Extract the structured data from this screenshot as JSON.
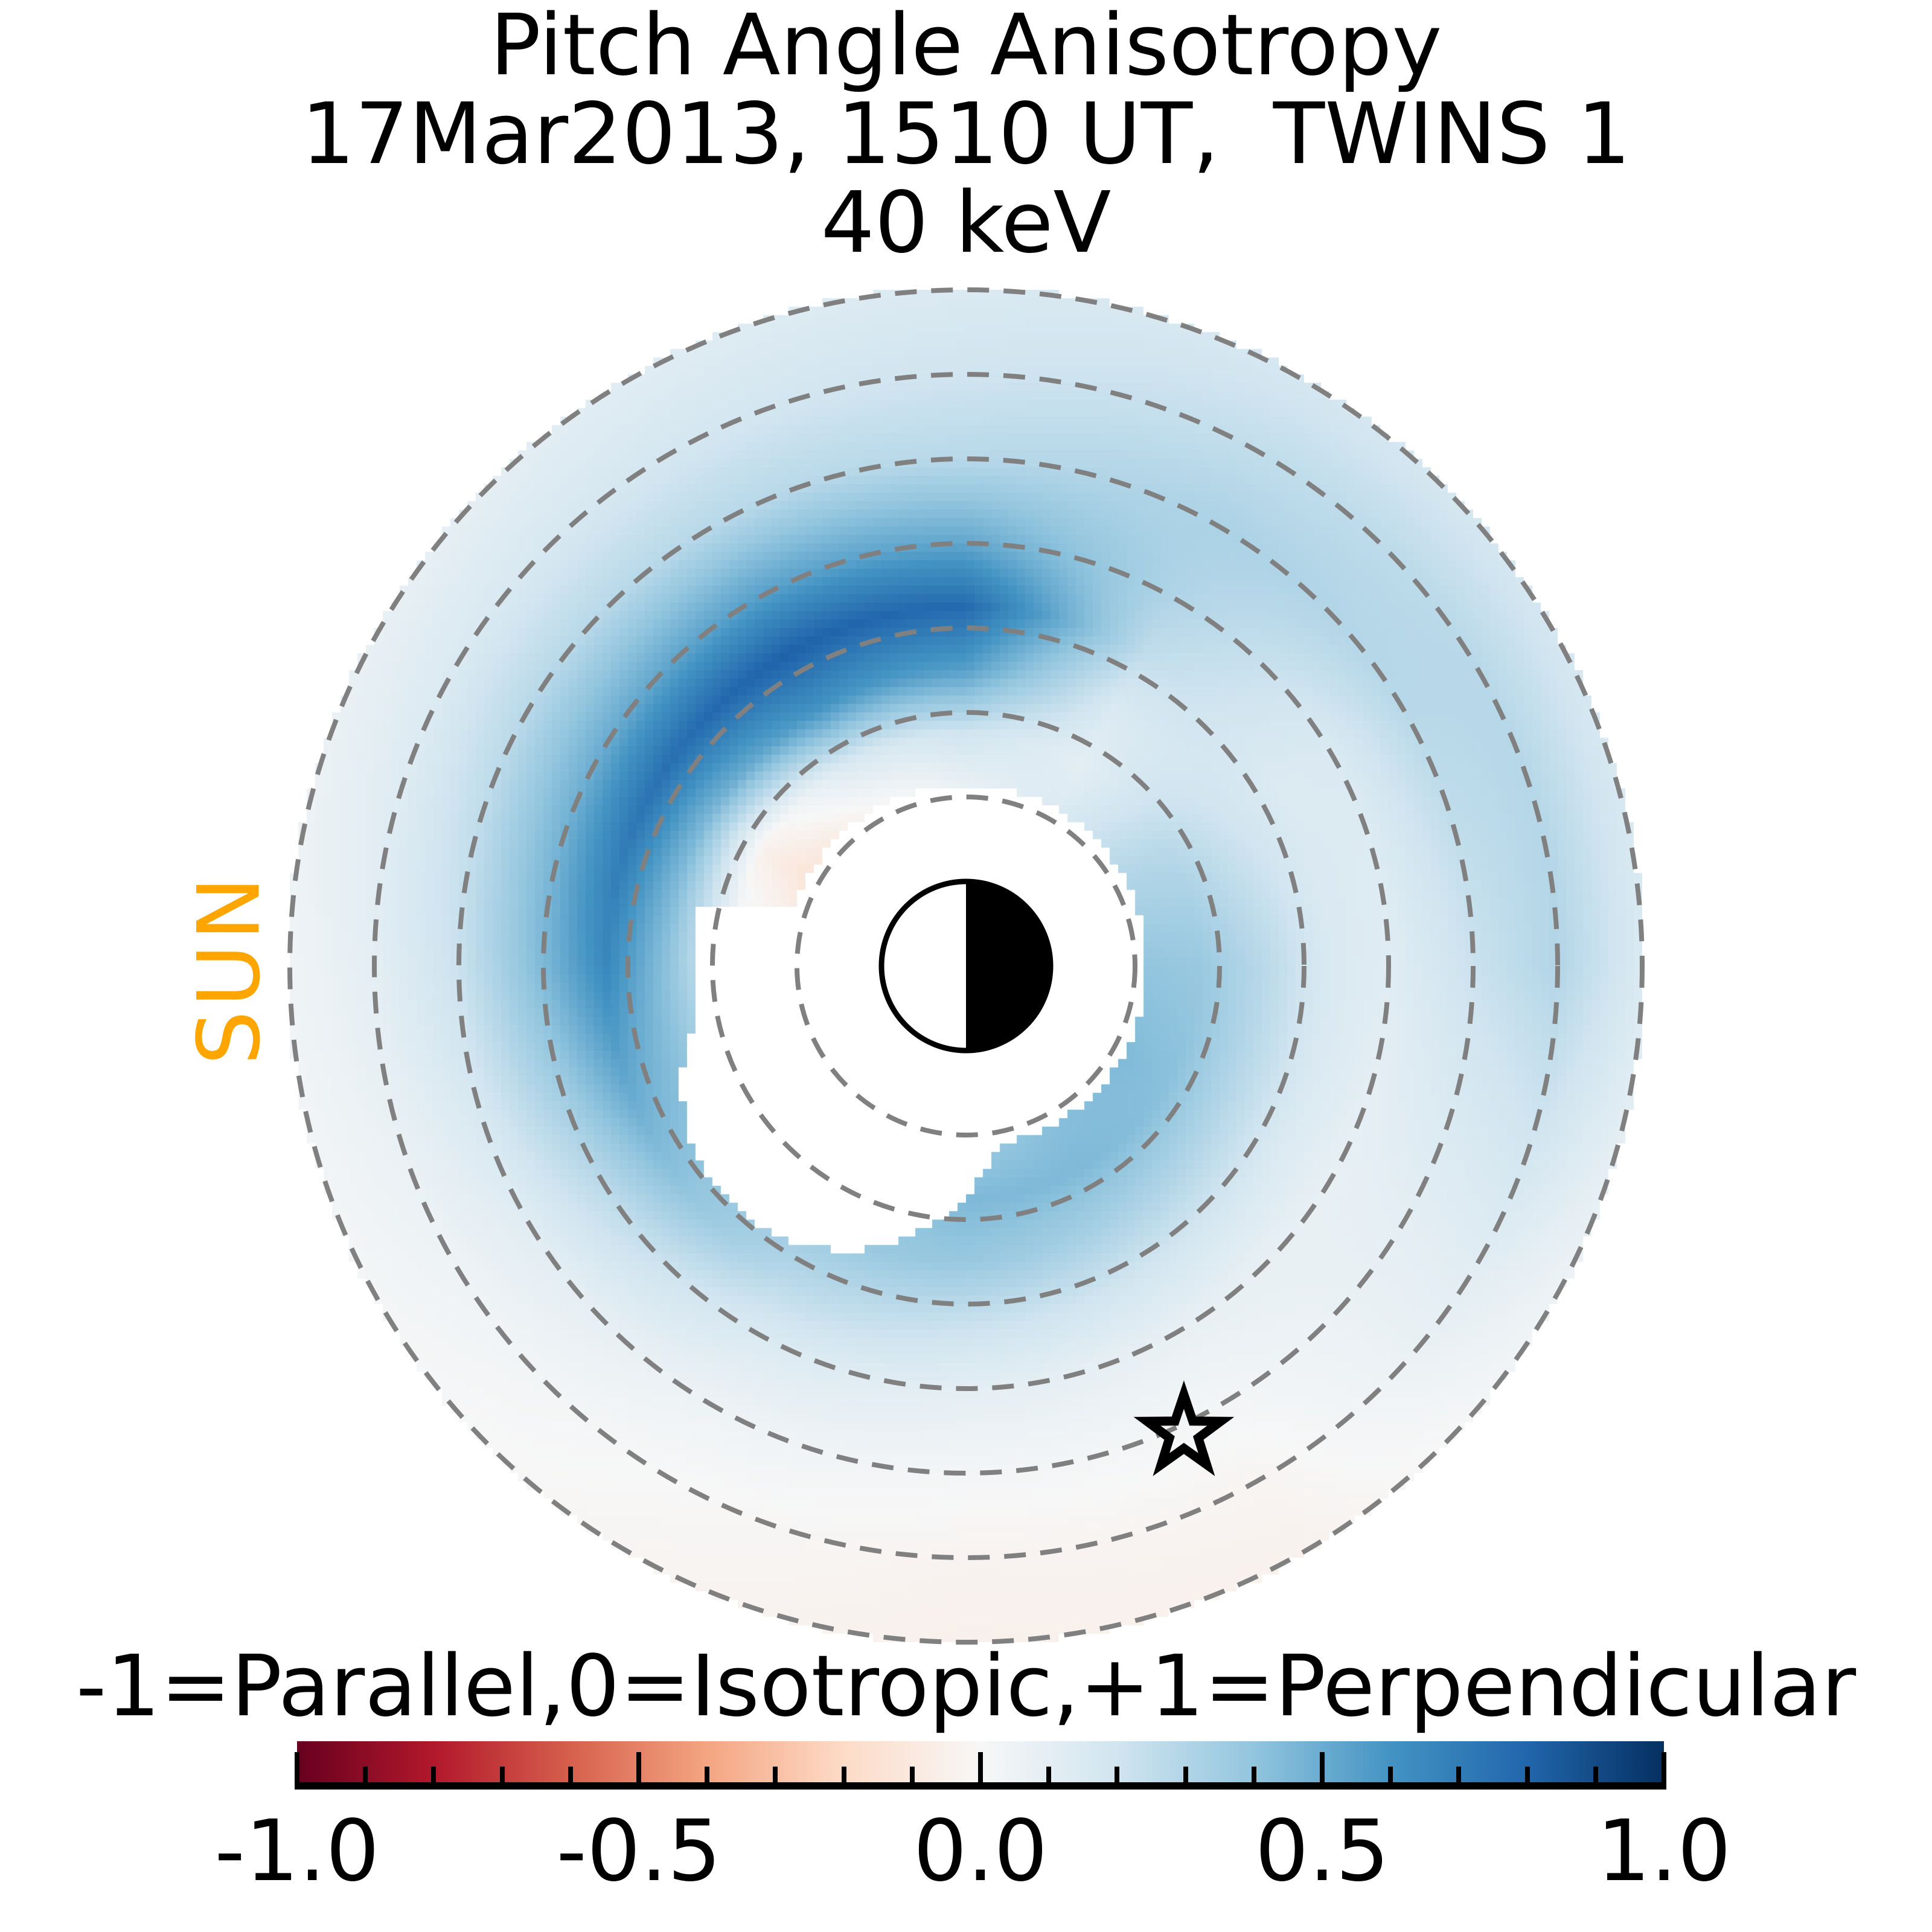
{
  "figure": {
    "title_lines": [
      "Pitch Angle Anisotropy",
      "17Mar2013, 1510 UT,  TWINS 1",
      "40 keV"
    ],
    "sun_label": "SUN",
    "sun_label_color": "#FFA500"
  },
  "colorbar": {
    "label": "-1=Parallel,0=Isotropic,+1=Perpendicular",
    "tick_labels": [
      "-1.0",
      "-0.5",
      "0.0",
      "0.5",
      "1.0"
    ],
    "tick_values": [
      -1.0,
      -0.5,
      0.0,
      0.5,
      1.0
    ],
    "minor_tick_step": 0.1,
    "range": [
      -1,
      1
    ],
    "colormap": "RdBu"
  },
  "chart_data": {
    "type": "heatmap",
    "projection": "polar",
    "title": "Pitch Angle Anisotropy",
    "datetime": "17Mar2013, 1510 UT",
    "instrument": "TWINS 1",
    "energy": "40 keV",
    "quantity": "pitch angle anisotropy index",
    "value_range": [
      -1,
      1
    ],
    "value_meaning": {
      "-1": "Parallel",
      "0": "Isotropic",
      "+1": "Perpendicular"
    },
    "sun_direction": "left",
    "colormap_stops": [
      [
        -1.0,
        "#67001f"
      ],
      [
        -0.8,
        "#b2182b"
      ],
      [
        -0.6,
        "#d6604d"
      ],
      [
        -0.4,
        "#f4a582"
      ],
      [
        -0.2,
        "#fddbc7"
      ],
      [
        0.0,
        "#f7f7f7"
      ],
      [
        0.2,
        "#d1e5f0"
      ],
      [
        0.4,
        "#92c5de"
      ],
      [
        0.6,
        "#4393c3"
      ],
      [
        0.8,
        "#2166ac"
      ],
      [
        1.0,
        "#053061"
      ]
    ],
    "l_shell_rings_re": [
      2,
      3,
      4,
      5,
      6,
      7,
      8
    ],
    "l_max_re": 8,
    "earth": {
      "radius_re": 1,
      "day_side": "left (sunward, white)",
      "night_side": "right (black)"
    },
    "star_marker": {
      "l": 6.1,
      "angle_deg": -65
    },
    "angles_deg": [
      0,
      30,
      60,
      90,
      120,
      150,
      180,
      210,
      240,
      270,
      300,
      330
    ],
    "l_values": [
      2,
      2.75,
      3.5,
      4.25,
      5,
      6,
      7,
      8
    ],
    "values": [
      [
        0.4,
        0.38,
        0.28,
        0.16,
        0.12,
        0.22,
        0.3,
        0.15
      ],
      [
        0.3,
        0.28,
        0.2,
        0.14,
        0.15,
        0.28,
        0.28,
        0.18
      ],
      [
        0.15,
        0.1,
        0.15,
        0.25,
        0.3,
        0.32,
        0.25,
        0.18
      ],
      [
        0.05,
        0.2,
        0.55,
        0.78,
        0.52,
        0.28,
        0.2,
        0.15
      ],
      [
        -0.05,
        0.15,
        0.6,
        0.82,
        0.55,
        0.28,
        0.18,
        0.12
      ],
      [
        -0.15,
        -0.05,
        0.45,
        0.75,
        0.5,
        0.28,
        0.15,
        0.08
      ],
      [
        0.0,
        0.1,
        0.4,
        0.65,
        0.45,
        0.22,
        0.1,
        0.04
      ],
      [
        0.2,
        0.3,
        0.4,
        0.45,
        0.28,
        0.12,
        0.05,
        0.02
      ],
      [
        0.3,
        0.38,
        0.38,
        0.28,
        0.15,
        0.05,
        0.0,
        -0.02
      ],
      [
        0.35,
        0.45,
        0.38,
        0.22,
        0.1,
        0.02,
        -0.03,
        -0.05
      ],
      [
        0.42,
        0.45,
        0.32,
        0.18,
        0.08,
        0.02,
        -0.02,
        -0.04
      ],
      [
        0.45,
        0.42,
        0.28,
        0.15,
        0.08,
        0.1,
        0.12,
        0.05
      ]
    ],
    "masked_region_re": {
      "description": "no-data white region around Earth extending sunward",
      "circles": [
        {
          "x": 0.0,
          "y": 0.0,
          "r": 2.14
        },
        {
          "x": -1.43,
          "y": -1.43,
          "r": 1.93
        }
      ],
      "rect": {
        "x0": -3.21,
        "x1": 0.14,
        "y0": -2.32,
        "y1": 0.71
      }
    }
  }
}
